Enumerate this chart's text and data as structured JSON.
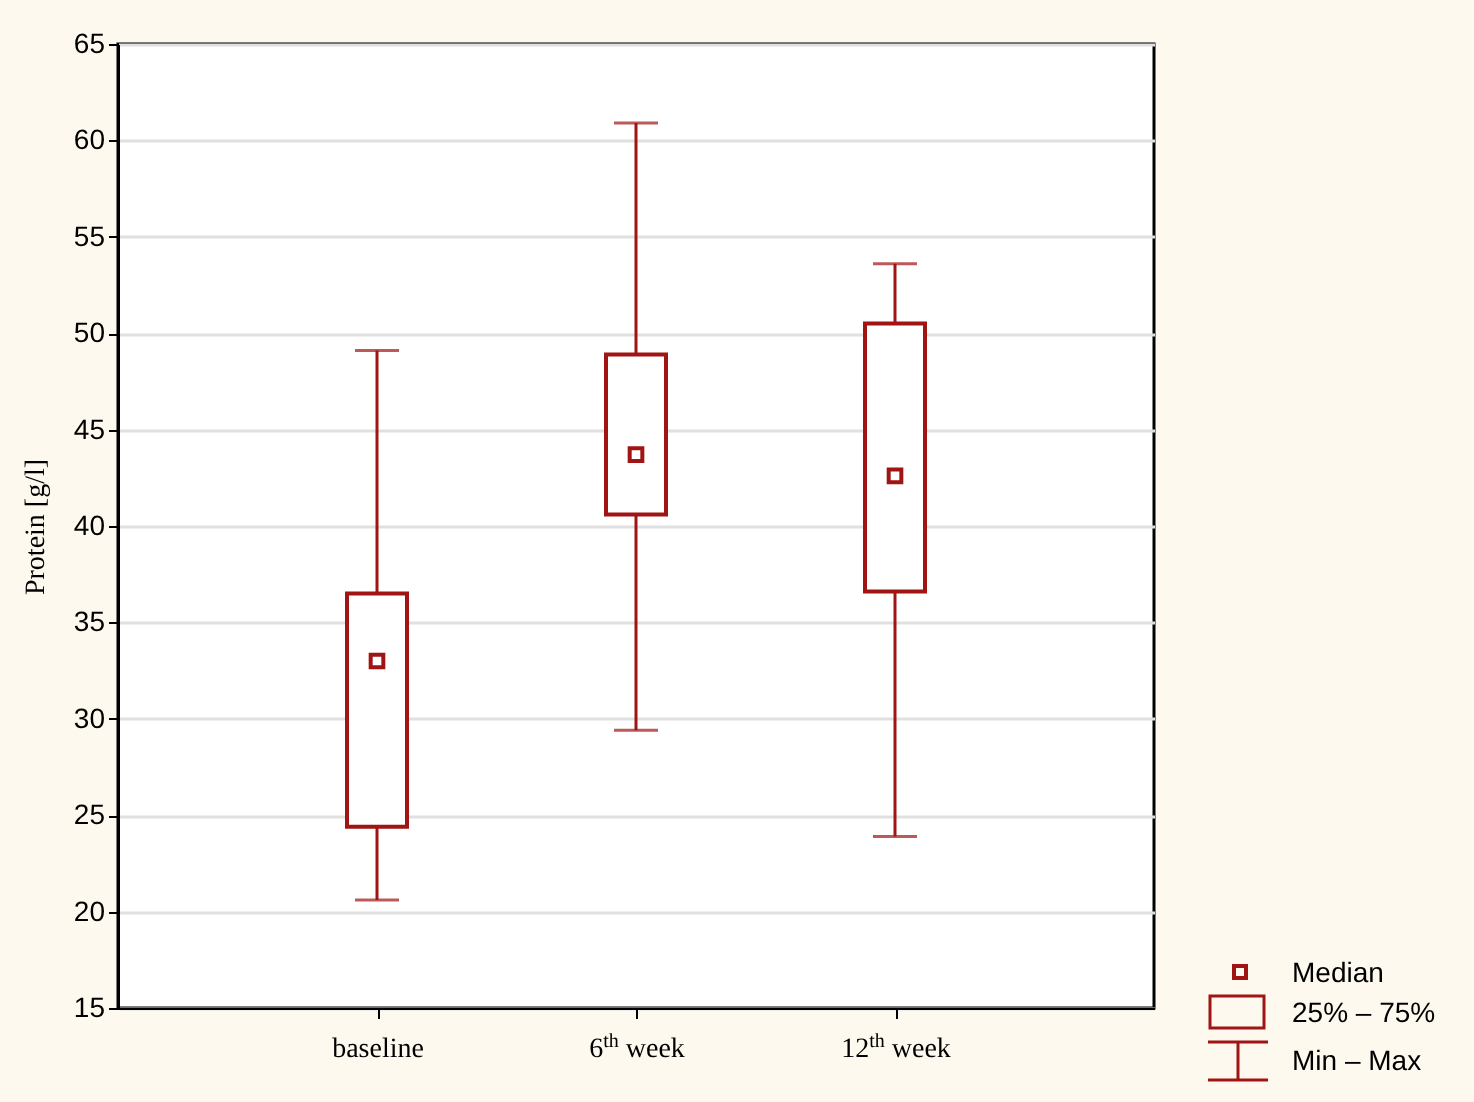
{
  "chart_data": {
    "type": "box",
    "ylabel": "Protein [g/l]",
    "categories": [
      "baseline",
      "6$^{th}$ week",
      "12$^{th}$ week"
    ],
    "series": [
      {
        "color": "#a01414",
        "boxes": [
          {
            "low": 20.6,
            "q1": 24.4,
            "median": 33.0,
            "q3": 36.5,
            "high": 49.1
          },
          {
            "low": 29.4,
            "q1": 40.6,
            "median": 43.7,
            "q3": 48.9,
            "high": 60.9
          },
          {
            "low": 23.9,
            "q1": 36.6,
            "median": 42.6,
            "q3": 50.5,
            "high": 53.6
          }
        ]
      }
    ],
    "ylim": [
      15,
      65
    ],
    "yticks": [
      15,
      20,
      25,
      30,
      35,
      40,
      45,
      50,
      55,
      60,
      65
    ],
    "grid": "y",
    "marker": "square",
    "annotations": [
      "Median",
      "25% – 75%",
      "Min – Max"
    ]
  }
}
